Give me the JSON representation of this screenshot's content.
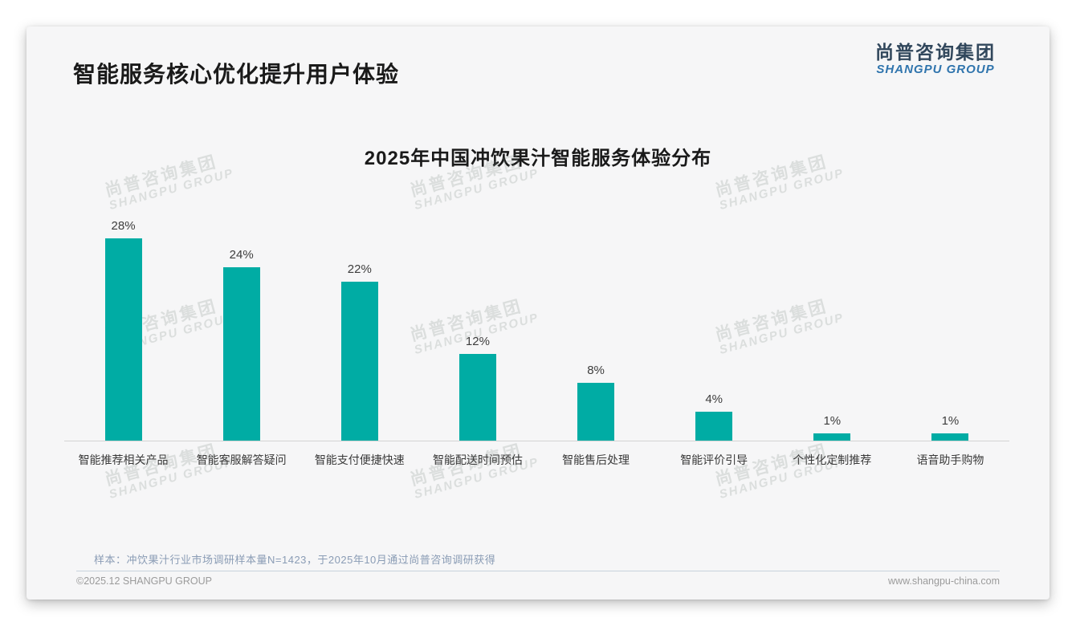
{
  "page": {
    "title": "智能服务核心优化提升用户体验",
    "logo": {
      "zh": "尚普咨询集团",
      "en": "SHANGPU GROUP"
    },
    "watermark": {
      "zh": "尚普咨询集团",
      "en": "SHANGPU GROUP"
    },
    "note": "样本：冲饮果汁行业市场调研样本量N=1423，于2025年10月通过尚普咨询调研获得",
    "footer": {
      "left": "©2025.12 SHANGPU GROUP",
      "right": "www.shangpu-china.com"
    }
  },
  "chart_data": {
    "type": "bar",
    "title": "2025年中国冲饮果汁智能服务体验分布",
    "categories": [
      "智能推荐相关产品",
      "智能客服解答疑问",
      "智能支付便捷快速",
      "智能配送时间预估",
      "智能售后处理",
      "智能评价引导",
      "个性化定制推荐",
      "语音助手购物"
    ],
    "values": [
      28,
      24,
      22,
      12,
      8,
      4,
      1,
      1
    ],
    "value_labels": [
      "28%",
      "24%",
      "22%",
      "12%",
      "8%",
      "4%",
      "1%",
      "1%"
    ],
    "xlabel": "",
    "ylabel": "",
    "ylim": [
      0,
      30
    ],
    "grid": false,
    "legend": "none",
    "bar_color": "#00aca4"
  },
  "colors": {
    "bar": "#00aca4",
    "card_bg": "#f6f6f7",
    "logo_zh": "#31475c",
    "logo_en": "#2f74ad",
    "note": "#8a9cb5",
    "footer": "#9b9b9b",
    "axis": "#d3d3d3"
  }
}
